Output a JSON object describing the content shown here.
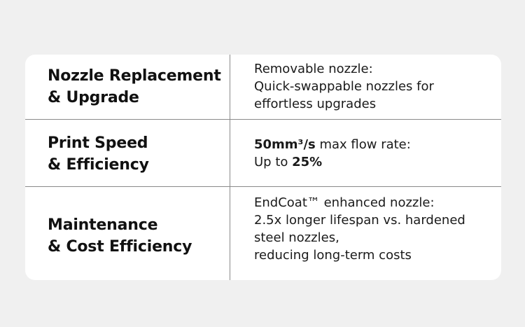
{
  "rows": [
    {
      "feature": [
        "Nozzle Replacement",
        "& Upgrade"
      ],
      "description": [
        "Removable nozzle:",
        "Quick-swappable nozzles for",
        "effortless upgrades"
      ]
    },
    {
      "feature": [
        "Print Speed",
        "& Efficiency"
      ],
      "description_rich": {
        "line1_bold": "50mm³/s",
        "line1_rest": " max flow rate:",
        "line2_prefix": "Up to ",
        "line2_bold": "25%"
      }
    },
    {
      "feature": [
        "Maintenance",
        "& Cost Efficiency"
      ],
      "description": [
        "EndCoat™ enhanced nozzle:",
        "2.5x longer lifespan vs. hardened",
        "steel nozzles,",
        "reducing long-term costs"
      ]
    }
  ]
}
